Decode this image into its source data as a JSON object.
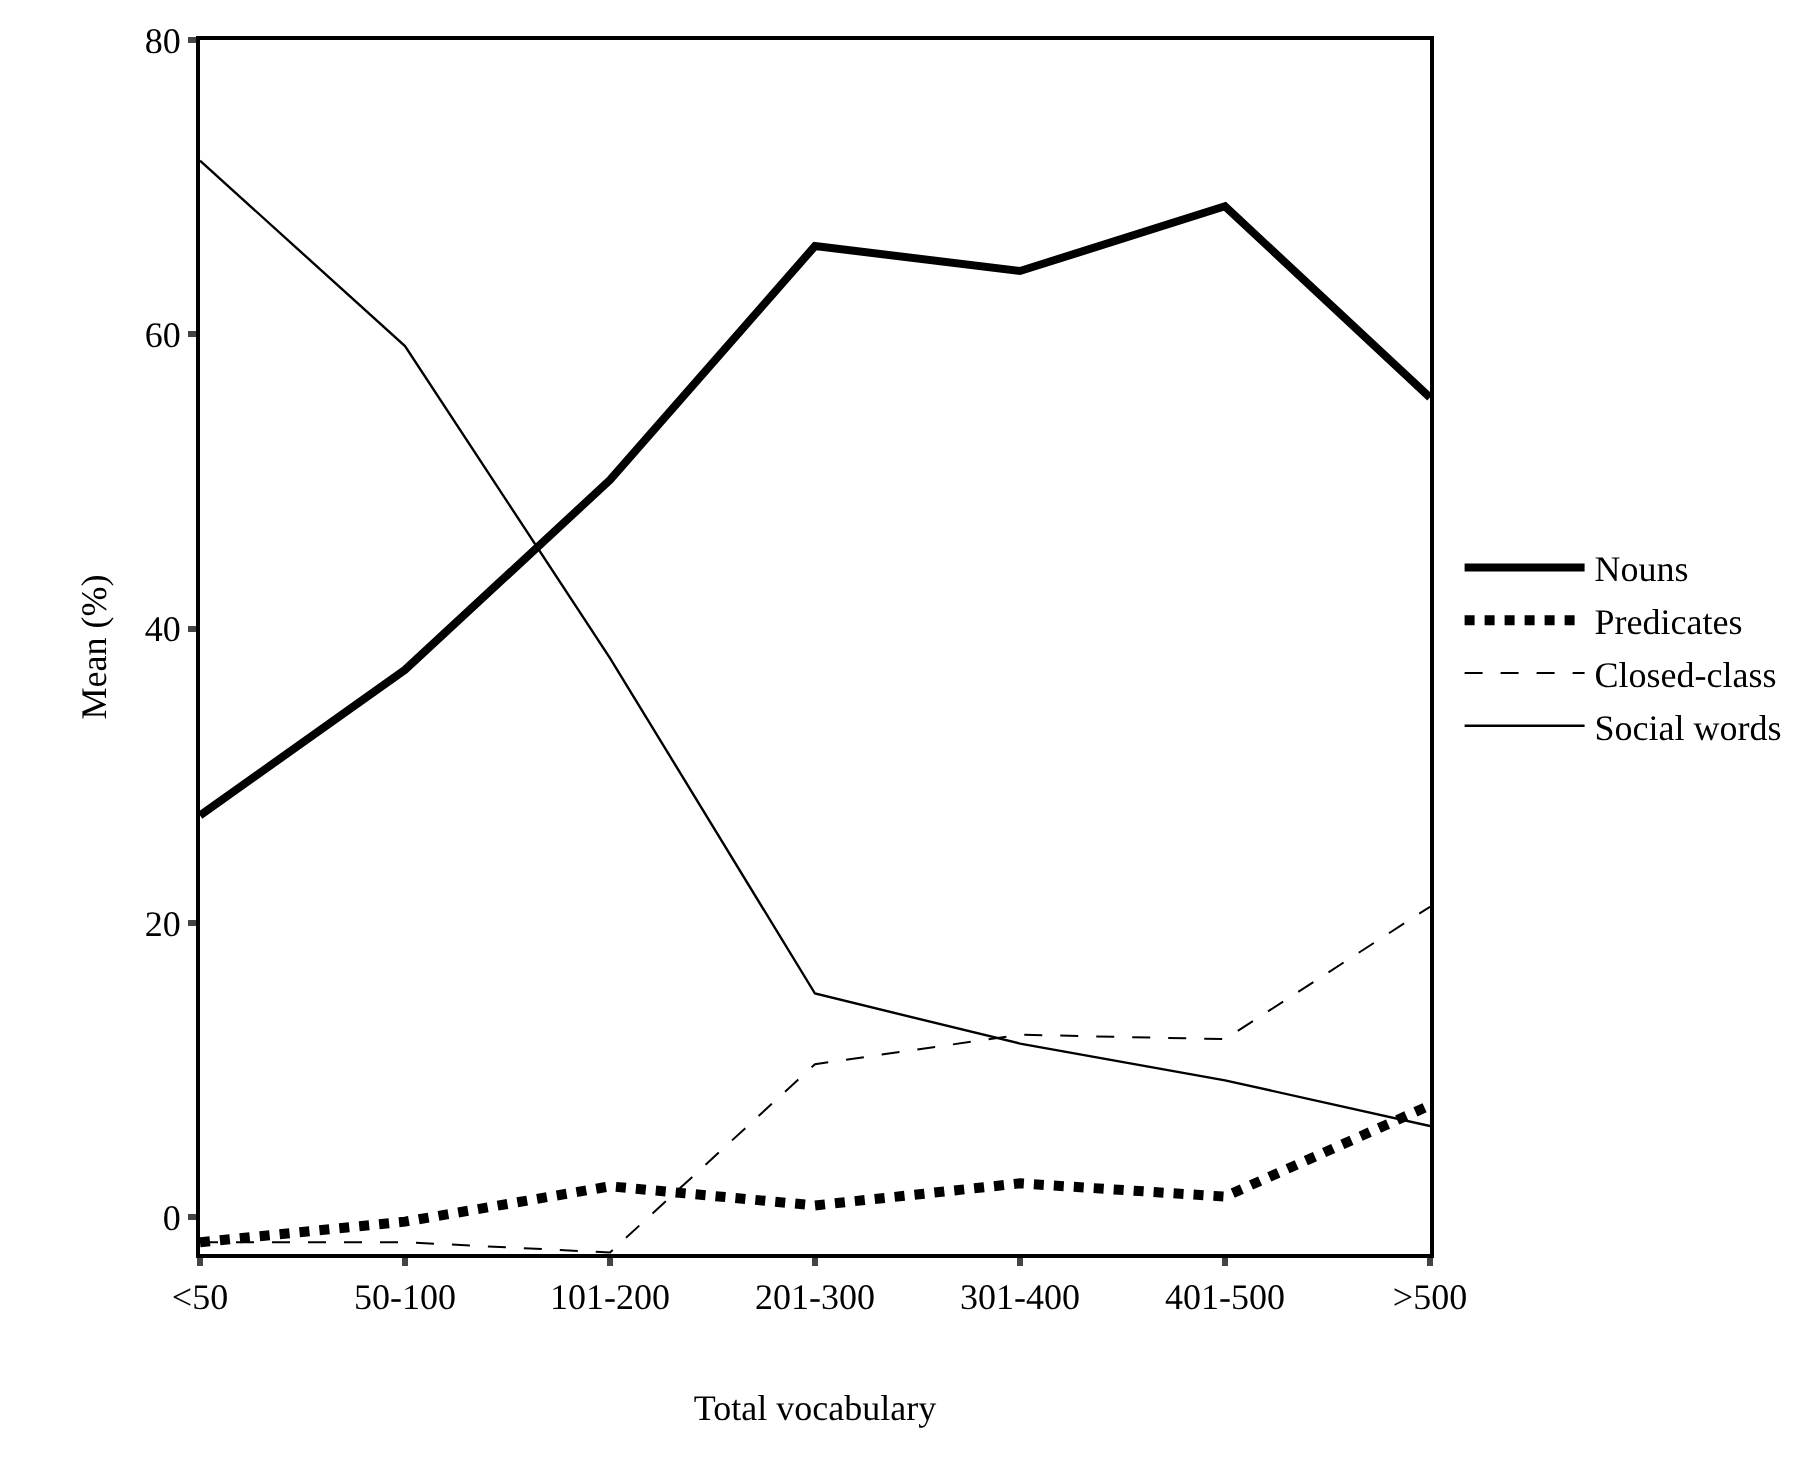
{
  "chart_data": {
    "type": "line",
    "xlabel": "Total vocabulary",
    "ylabel": "Mean (%)",
    "categories": [
      "<50",
      "50-100",
      "101-200",
      "201-300",
      "301-400",
      "401-500",
      ">500"
    ],
    "ylim": [
      -2.5,
      80
    ],
    "yticks": [
      0,
      20,
      40,
      60,
      80
    ],
    "grid": false,
    "legend": "right",
    "marker": "none",
    "series": [
      {
        "name": "Nouns",
        "color": "#000000",
        "line_style": "solid",
        "values": [
          27.3,
          37.2,
          50.1,
          66,
          64.3,
          68.7,
          55.7
        ]
      },
      {
        "name": "Predicates",
        "color": "#000000",
        "line_style": "dotted",
        "values": [
          -1.7,
          -0.3,
          2.1,
          0.8,
          2.3,
          1.4,
          7.6
        ]
      },
      {
        "name": "Closed-class",
        "color": "#000000",
        "line_style": "dashed",
        "values": [
          -1.7,
          -1.7,
          -2.4,
          10.4,
          12.4,
          12.1,
          21.1
        ]
      },
      {
        "name": "Social words",
        "color": "#000000",
        "line_style": "solid",
        "values": [
          71.8,
          59.2,
          38,
          15.2,
          11.8,
          9.3,
          6.2
        ]
      }
    ]
  }
}
